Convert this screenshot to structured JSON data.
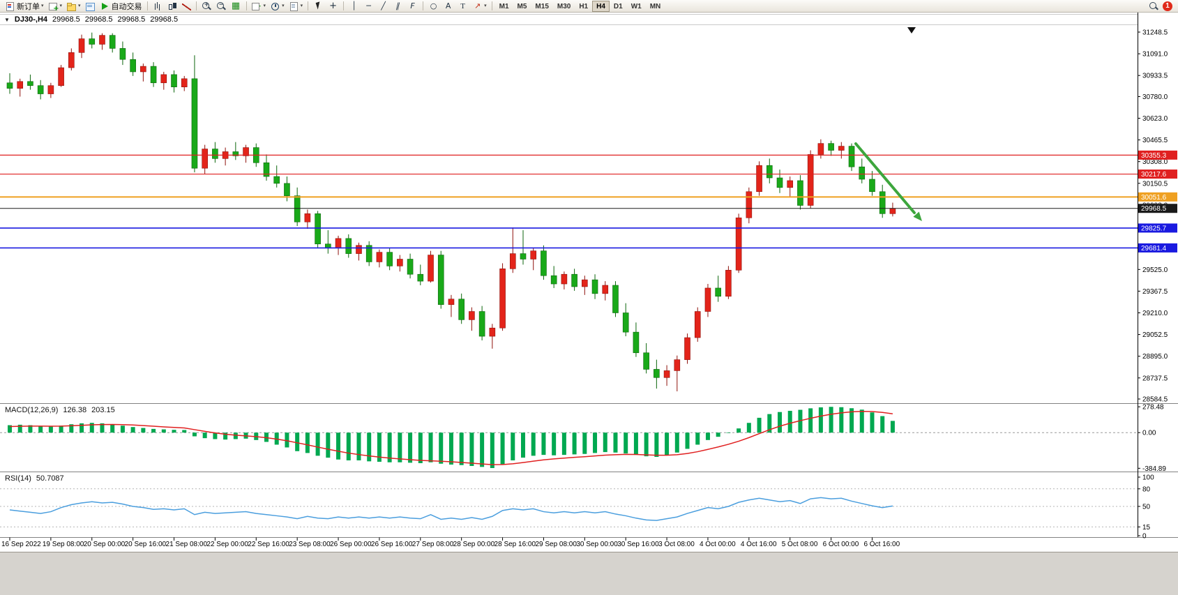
{
  "toolbar": {
    "notification_count": "1",
    "active_timeframe": "H4",
    "timeframes": [
      "M1",
      "M5",
      "M15",
      "M30",
      "H1",
      "H4",
      "D1",
      "W1",
      "MN"
    ],
    "icon_glyphs": {
      "tile": "▦",
      "indicators": "+",
      "crosshair": "+",
      "vline": "│",
      "hline": "─",
      "trend": "╱",
      "channel": "∥",
      "fibo": "F",
      "shapes": "○",
      "textA": "A",
      "textT": "T",
      "arrow": "↗",
      "zoom-in": "+",
      "zoom-out": "−",
      "caret": "▾"
    },
    "items": [
      {
        "name": "new-order",
        "icon": "doc",
        "label": "新订单",
        "caret": true
      },
      {
        "name": "new-chart",
        "icon": "chart-add",
        "caret": true
      },
      {
        "name": "profiles",
        "icon": "profiles",
        "caret": true
      },
      {
        "name": "data-window",
        "icon": "data-window"
      },
      {
        "name": "auto-trading",
        "icon": "play",
        "label": "自动交易"
      },
      {
        "sep": true
      },
      {
        "name": "bar-chart",
        "icon": "bars"
      },
      {
        "name": "candlestick-chart",
        "icon": "candles"
      },
      {
        "name": "line-chart",
        "icon": "line-chart"
      },
      {
        "sep": true
      },
      {
        "name": "zoom-in",
        "icon": "zoom-in"
      },
      {
        "name": "zoom-out",
        "icon": "zoom-out"
      },
      {
        "name": "tile-windows",
        "icon": "tile"
      },
      {
        "sep": true
      },
      {
        "name": "indicators",
        "icon": "indicators",
        "caret": true
      },
      {
        "name": "periods",
        "icon": "clock",
        "caret": true
      },
      {
        "name": "templates",
        "icon": "template",
        "caret": true
      },
      {
        "sep": true
      },
      {
        "name": "cursor",
        "icon": "cursor"
      },
      {
        "name": "crosshair",
        "icon": "crosshair"
      },
      {
        "sep": true
      },
      {
        "name": "vertical-line",
        "icon": "vline"
      },
      {
        "name": "horizontal-line",
        "icon": "hline"
      },
      {
        "name": "trendline",
        "icon": "trend"
      },
      {
        "name": "equidistant-channel",
        "icon": "channel"
      },
      {
        "name": "fibonacci-retracement",
        "icon": "fibo"
      },
      {
        "sep": true
      },
      {
        "name": "shapes",
        "icon": "shapes"
      },
      {
        "name": "text",
        "icon": "textA"
      },
      {
        "name": "text-label",
        "icon": "textT"
      },
      {
        "name": "arrows",
        "icon": "arrow",
        "caret": true
      },
      {
        "sep": true
      }
    ]
  },
  "chart": {
    "type": "candlestick",
    "collapse_glyph": "▼",
    "title": "DJ30-,H4",
    "open": "29968.5",
    "high": "29968.5",
    "low": "29968.5",
    "close": "29968.5",
    "axis_top": 31248.5,
    "axis_bottom": 28584.5,
    "y_axis_ticks": [
      "31248.5",
      "31091.0",
      "30933.5",
      "30780.0",
      "30623.0",
      "30465.5",
      "30308.0",
      "30150.5",
      "29993.0",
      "29835.5",
      "29678.0",
      "29525.0",
      "29367.5",
      "29210.0",
      "29052.5",
      "28895.0",
      "28737.5",
      "28584.5"
    ],
    "price_lines": [
      {
        "value": "30355.3",
        "price": 30355.3,
        "color": "#e02020",
        "width": 1.2
      },
      {
        "value": "30217.6",
        "price": 30217.6,
        "color": "#e02020",
        "width": 1.2
      },
      {
        "value": "30051.6",
        "price": 30051.6,
        "color": "#efa021",
        "width": 2
      },
      {
        "value": "29968.5",
        "price": 29968.5,
        "color": "#1a1a1a",
        "width": 1,
        "kind": "current-price"
      },
      {
        "value": "29825.7",
        "price": 29825.7,
        "color": "#1a1ae0",
        "width": 1.6
      },
      {
        "value": "29681.4",
        "price": 29681.4,
        "color": "#1a1ae0",
        "width": 1.6
      }
    ],
    "colors": {
      "up": "#e3241a",
      "up_border": "#8f120c",
      "down": "#19a919",
      "down_border": "#0c660c"
    },
    "arrow": {
      "color": "#3da63d"
    },
    "time_labels": [
      "16 Sep 2022",
      "19 Sep 08:00",
      "20 Sep 00:00",
      "20 Sep 16:00",
      "21 Sep 08:00",
      "22 Sep 00:00",
      "22 Sep 16:00",
      "23 Sep 08:00",
      "26 Sep 00:00",
      "26 Sep 16:00",
      "27 Sep 08:00",
      "28 Sep 00:00",
      "28 Sep 16:00",
      "29 Sep 08:00",
      "30 Sep 00:00",
      "30 Sep 16:00",
      "3 Oct 08:00",
      "4 Oct 00:00",
      "4 Oct 16:00",
      "5 Oct 08:00",
      "6 Oct 00:00",
      "6 Oct 16:00"
    ],
    "candles": [
      [
        30880,
        30950,
        30800,
        30840
      ],
      [
        30840,
        30910,
        30780,
        30890
      ],
      [
        30890,
        30940,
        30830,
        30860
      ],
      [
        30860,
        30900,
        30760,
        30800
      ],
      [
        30800,
        30880,
        30770,
        30860
      ],
      [
        30860,
        31010,
        30850,
        30990
      ],
      [
        30990,
        31130,
        30970,
        31100
      ],
      [
        31100,
        31230,
        31060,
        31200
      ],
      [
        31200,
        31245,
        31130,
        31160
      ],
      [
        31160,
        31240,
        31120,
        31225
      ],
      [
        31225,
        31240,
        31100,
        31130
      ],
      [
        31130,
        31180,
        31010,
        31050
      ],
      [
        31050,
        31100,
        30930,
        30960
      ],
      [
        30960,
        31020,
        30890,
        31000
      ],
      [
        31000,
        31030,
        30850,
        30880
      ],
      [
        30880,
        30960,
        30830,
        30940
      ],
      [
        30940,
        30970,
        30810,
        30850
      ],
      [
        30850,
        30930,
        30820,
        30910
      ],
      [
        30910,
        31080,
        30230,
        30260
      ],
      [
        30260,
        30430,
        30220,
        30400
      ],
      [
        30400,
        30450,
        30300,
        30330
      ],
      [
        30330,
        30410,
        30280,
        30380
      ],
      [
        30380,
        30450,
        30320,
        30350
      ],
      [
        30350,
        30430,
        30300,
        30410
      ],
      [
        30410,
        30440,
        30270,
        30300
      ],
      [
        30300,
        30360,
        30170,
        30200
      ],
      [
        30200,
        30280,
        30120,
        30150
      ],
      [
        30150,
        30200,
        30020,
        30060
      ],
      [
        30060,
        30120,
        29840,
        29870
      ],
      [
        29870,
        29960,
        29820,
        29930
      ],
      [
        29930,
        29950,
        29680,
        29710
      ],
      [
        29710,
        29810,
        29640,
        29680
      ],
      [
        29680,
        29770,
        29630,
        29750
      ],
      [
        29750,
        29780,
        29610,
        29640
      ],
      [
        29640,
        29720,
        29590,
        29700
      ],
      [
        29700,
        29730,
        29550,
        29580
      ],
      [
        29580,
        29670,
        29540,
        29650
      ],
      [
        29650,
        29680,
        29520,
        29550
      ],
      [
        29550,
        29630,
        29510,
        29600
      ],
      [
        29600,
        29640,
        29460,
        29490
      ],
      [
        29490,
        29560,
        29410,
        29440
      ],
      [
        29440,
        29660,
        29430,
        29630
      ],
      [
        29630,
        29660,
        29240,
        29270
      ],
      [
        29270,
        29340,
        29180,
        29310
      ],
      [
        29310,
        29350,
        29130,
        29160
      ],
      [
        29160,
        29250,
        29080,
        29220
      ],
      [
        29220,
        29260,
        29010,
        29040
      ],
      [
        29040,
        29130,
        28950,
        29100
      ],
      [
        29100,
        29570,
        29080,
        29530
      ],
      [
        29530,
        29830,
        29500,
        29640
      ],
      [
        29640,
        29810,
        29560,
        29600
      ],
      [
        29600,
        29680,
        29520,
        29660
      ],
      [
        29660,
        29700,
        29450,
        29480
      ],
      [
        29480,
        29550,
        29390,
        29420
      ],
      [
        29420,
        29510,
        29380,
        29490
      ],
      [
        29490,
        29530,
        29370,
        29400
      ],
      [
        29400,
        29480,
        29340,
        29450
      ],
      [
        29450,
        29490,
        29310,
        29350
      ],
      [
        29350,
        29440,
        29300,
        29410
      ],
      [
        29410,
        29440,
        29180,
        29210
      ],
      [
        29210,
        29280,
        29040,
        29070
      ],
      [
        29070,
        29140,
        28890,
        28920
      ],
      [
        28920,
        28990,
        28770,
        28800
      ],
      [
        28800,
        28870,
        28660,
        28740
      ],
      [
        28740,
        28830,
        28680,
        28790
      ],
      [
        28790,
        28900,
        28640,
        28870
      ],
      [
        28870,
        29060,
        28840,
        29030
      ],
      [
        29030,
        29250,
        29000,
        29220
      ],
      [
        29220,
        29420,
        29180,
        29390
      ],
      [
        29390,
        29480,
        29290,
        29330
      ],
      [
        29330,
        29550,
        29310,
        29520
      ],
      [
        29520,
        29930,
        29500,
        29900
      ],
      [
        29900,
        30120,
        29860,
        30090
      ],
      [
        30090,
        30310,
        30060,
        30280
      ],
      [
        30280,
        30330,
        30150,
        30190
      ],
      [
        30190,
        30250,
        30080,
        30120
      ],
      [
        30120,
        30200,
        30050,
        30170
      ],
      [
        30170,
        30210,
        29960,
        29990
      ],
      [
        29990,
        30390,
        29970,
        30360
      ],
      [
        30360,
        30470,
        30330,
        30440
      ],
      [
        30440,
        30460,
        30350,
        30390
      ],
      [
        30390,
        30450,
        30330,
        30420
      ],
      [
        30420,
        30440,
        30240,
        30270
      ],
      [
        30270,
        30330,
        30150,
        30180
      ],
      [
        30180,
        30240,
        30060,
        30090
      ],
      [
        30090,
        30140,
        29900,
        29930
      ],
      [
        29930,
        30010,
        29910,
        29968.5
      ]
    ]
  },
  "macd": {
    "name": "MACD(12,26,9)",
    "main_value": "126.38",
    "signal_value": "203.15",
    "hist_color": "#00a850",
    "signal_color": "#e02020",
    "axis": [
      {
        "label": "278.48",
        "value": 278.48
      },
      {
        "label": "0.00",
        "value": 0
      },
      {
        "label": "-384.89",
        "value": -384.89
      }
    ],
    "hist": [
      80,
      85,
      80,
      70,
      65,
      75,
      90,
      100,
      105,
      100,
      90,
      75,
      60,
      50,
      40,
      35,
      30,
      28,
      -40,
      -60,
      -70,
      -75,
      -70,
      -65,
      -80,
      -100,
      -130,
      -160,
      -200,
      -220,
      -250,
      -270,
      -290,
      -300,
      -300,
      -310,
      -315,
      -320,
      -320,
      -325,
      -330,
      -320,
      -335,
      -345,
      -350,
      -360,
      -370,
      -382,
      -340,
      -300,
      -270,
      -250,
      -240,
      -245,
      -240,
      -235,
      -230,
      -220,
      -210,
      -215,
      -225,
      -240,
      -255,
      -262,
      -245,
      -215,
      -175,
      -130,
      -80,
      -45,
      -5,
      45,
      105,
      160,
      200,
      222,
      235,
      246,
      262,
      272,
      278,
      274,
      263,
      248,
      218,
      178,
      126.38
    ],
    "signal": [
      65,
      68,
      70,
      70,
      69,
      70,
      74,
      79,
      84,
      87,
      88,
      86,
      82,
      76,
      69,
      62,
      56,
      50,
      32,
      14,
      -3,
      -17,
      -28,
      -35,
      -44,
      -55,
      -70,
      -88,
      -110,
      -132,
      -156,
      -179,
      -201,
      -221,
      -237,
      -252,
      -264,
      -275,
      -284,
      -292,
      -300,
      -304,
      -309,
      -315,
      -322,
      -330,
      -338,
      -346,
      -345,
      -336,
      -323,
      -308,
      -294,
      -284,
      -275,
      -267,
      -260,
      -252,
      -243,
      -238,
      -235,
      -236,
      -240,
      -244,
      -244,
      -238,
      -225,
      -206,
      -181,
      -155,
      -126,
      -93,
      -54,
      -11,
      31,
      69,
      101,
      129,
      155,
      178,
      198,
      213,
      224,
      229,
      227,
      218,
      203.15
    ]
  },
  "rsi": {
    "name": "RSI(14)",
    "value": "50.7087",
    "color": "#4a9ede",
    "axis": [
      {
        "label": "100",
        "value": 100
      },
      {
        "label": "80",
        "value": 80
      },
      {
        "label": "50",
        "value": 50
      },
      {
        "label": "15",
        "value": 15
      },
      {
        "label": "0",
        "value": 0
      }
    ],
    "levels": [
      80,
      50,
      15
    ],
    "values": [
      44,
      42,
      40,
      38,
      41,
      48,
      53,
      56,
      58,
      56,
      57,
      54,
      50,
      48,
      45,
      46,
      44,
      46,
      36,
      40,
      38,
      39,
      40,
      41,
      38,
      36,
      34,
      32,
      29,
      33,
      30,
      29,
      32,
      30,
      32,
      30,
      32,
      30,
      32,
      30,
      29,
      36,
      28,
      30,
      28,
      31,
      28,
      33,
      43,
      46,
      44,
      46,
      41,
      39,
      41,
      39,
      41,
      39,
      41,
      37,
      34,
      30,
      27,
      26,
      29,
      32,
      38,
      43,
      48,
      46,
      50,
      57,
      61,
      64,
      61,
      58,
      60,
      55,
      63,
      65,
      63,
      64,
      59,
      55,
      51,
      48,
      50.7
    ]
  }
}
